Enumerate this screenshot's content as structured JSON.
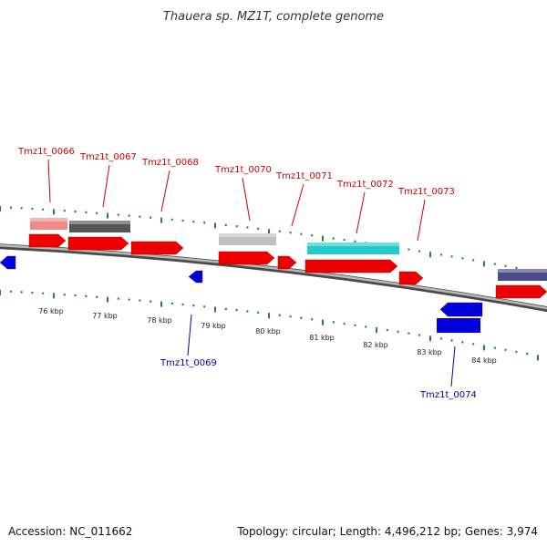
{
  "title": "Thauera sp. MZ1T, complete genome",
  "footer": {
    "accession": "Accession: NC_011662",
    "topology": "Topology: circular; Length: 4,496,212 bp; Genes: 3,974"
  },
  "colors": {
    "forward_gene": "#ee0000",
    "reverse_gene": "#0000dd",
    "label_forward": "#cc0000",
    "label_reverse": "#0000aa",
    "backbone": "#888888",
    "tick": "#1f8a1f",
    "feature_colors": [
      "#ef8a8a",
      "#555555",
      "#c0c0c0",
      "#22cccc",
      "#4a4a8a"
    ]
  },
  "kbp_labels": [
    "76 kbp",
    "77 kbp",
    "78 kbp",
    "79 kbp",
    "80 kbp",
    "81 kbp",
    "82 kbp",
    "83 kbp",
    "84 kbp"
  ],
  "gene_labels": {
    "forward": [
      "Tmz1t_0066",
      "Tmz1t_0067",
      "Tmz1t_0068",
      "Tmz1t_0070",
      "Tmz1t_0071",
      "Tmz1t_0072",
      "Tmz1t_0073"
    ],
    "reverse": [
      "Tmz1t_0069",
      "Tmz1t_0074"
    ]
  }
}
